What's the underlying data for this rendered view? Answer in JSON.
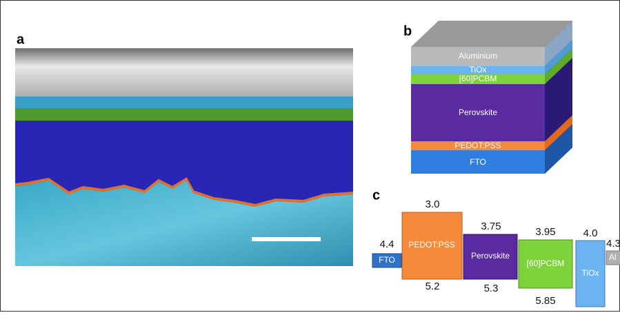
{
  "panels": {
    "a": {
      "label": "a"
    },
    "b": {
      "label": "b",
      "layers": [
        "Aluminium",
        "TiOx",
        "[60]PCBM",
        "Perovskite",
        "PEDOT:PSS",
        "FTO"
      ]
    },
    "c": {
      "label": "c",
      "levels": [
        {
          "name": "FTO",
          "top": "4.4"
        },
        {
          "name": "PEDOT:PSS",
          "top": "3.0",
          "bottom": "5.2"
        },
        {
          "name": "Perovskite",
          "top": "3.75",
          "bottom": "5.3"
        },
        {
          "name": "[60]PCBM",
          "top": "3.95",
          "bottom": "5.85"
        },
        {
          "name": "TiOx",
          "top": "4.0"
        },
        {
          "name": "Al",
          "top": "4.3"
        }
      ]
    }
  }
}
